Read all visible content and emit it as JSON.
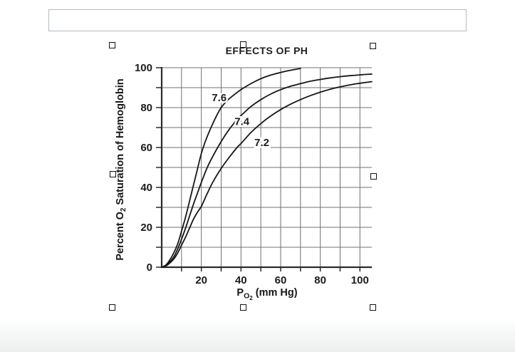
{
  "page": {
    "background": "#ffffff"
  },
  "caption_box": {
    "value": "",
    "placeholder": ""
  },
  "selection": {
    "handles": [
      "top-left",
      "top-center",
      "top-right",
      "middle-left",
      "middle-right",
      "bottom-left",
      "bottom-center",
      "bottom-right"
    ]
  },
  "chart_data": {
    "type": "line",
    "title": "EFFECTS OF PH",
    "xlabel": "PO2 (mm Hg)",
    "ylabel": "Percent O2 Saturation of Hemoglobin",
    "xlabel_parts": {
      "main": "P",
      "sub": "O",
      "subsub": "2",
      "rest": " (mm Hg)"
    },
    "ylabel_parts": {
      "pre": "Percent O",
      "sub": "2",
      "post": " Saturation of Hemoglobin"
    },
    "xlim": [
      0,
      106
    ],
    "ylim": [
      0,
      100
    ],
    "x_major_ticks": [
      20,
      40,
      60,
      80,
      100
    ],
    "y_major_ticks": [
      0,
      20,
      40,
      60,
      80,
      100
    ],
    "x_grid_every": 10,
    "y_grid_every": 10,
    "grid": true,
    "legend": "inline-curve-labels",
    "colors": {
      "curve": "#161616",
      "grid": "#707070",
      "axis": "#2b2b2b",
      "text": "#1c1c1c",
      "caption_border": "#b4bcc2"
    },
    "series": [
      {
        "name": "pH 7.6",
        "label": "7.6",
        "label_at": [
          29,
          85
        ],
        "points": [
          [
            0,
            0
          ],
          [
            2,
            1
          ],
          [
            4,
            3.5
          ],
          [
            6,
            7
          ],
          [
            8,
            11.5
          ],
          [
            10,
            18
          ],
          [
            12,
            25
          ],
          [
            14,
            33
          ],
          [
            16,
            41
          ],
          [
            18,
            49
          ],
          [
            20,
            57
          ],
          [
            22,
            63
          ],
          [
            24,
            68
          ],
          [
            26,
            72.5
          ],
          [
            28,
            76.5
          ],
          [
            30,
            80
          ],
          [
            33,
            83.5
          ],
          [
            36,
            86
          ],
          [
            40,
            89
          ],
          [
            45,
            92
          ],
          [
            50,
            94.5
          ],
          [
            55,
            96.3
          ],
          [
            60,
            97.6
          ],
          [
            65,
            98.7
          ],
          [
            70,
            99.6
          ]
        ]
      },
      {
        "name": "pH 7.4",
        "label": "7.4",
        "label_at": [
          40.5,
          73
        ],
        "points": [
          [
            0,
            0
          ],
          [
            2,
            0.8
          ],
          [
            4,
            2.5
          ],
          [
            6,
            5
          ],
          [
            8,
            9
          ],
          [
            10,
            14
          ],
          [
            12,
            19.5
          ],
          [
            14,
            25.5
          ],
          [
            16,
            31.5
          ],
          [
            18,
            37
          ],
          [
            20,
            42.5
          ],
          [
            23,
            50
          ],
          [
            26,
            56
          ],
          [
            30,
            63
          ],
          [
            34,
            69
          ],
          [
            38,
            74
          ],
          [
            40,
            76
          ],
          [
            45,
            80.5
          ],
          [
            50,
            84
          ],
          [
            55,
            86.8
          ],
          [
            60,
            89
          ],
          [
            65,
            90.7
          ],
          [
            70,
            92
          ],
          [
            75,
            93.2
          ],
          [
            80,
            94.1
          ],
          [
            85,
            94.9
          ],
          [
            90,
            95.5
          ],
          [
            95,
            96
          ],
          [
            100,
            96.4
          ],
          [
            106,
            96.8
          ]
        ]
      },
      {
        "name": "pH 7.2",
        "label": "7.2",
        "label_at": [
          50.5,
          62.5
        ],
        "points": [
          [
            0,
            0
          ],
          [
            2,
            0.6
          ],
          [
            4,
            2
          ],
          [
            6,
            4
          ],
          [
            8,
            7
          ],
          [
            10,
            11
          ],
          [
            12,
            15
          ],
          [
            14,
            19.5
          ],
          [
            16,
            24
          ],
          [
            18,
            27.5
          ],
          [
            20,
            30.5
          ],
          [
            23,
            37
          ],
          [
            26,
            43
          ],
          [
            30,
            49.5
          ],
          [
            34,
            55
          ],
          [
            38,
            60
          ],
          [
            40,
            62
          ],
          [
            45,
            67.5
          ],
          [
            50,
            72
          ],
          [
            55,
            75.8
          ],
          [
            60,
            79
          ],
          [
            65,
            81.7
          ],
          [
            70,
            84
          ],
          [
            75,
            86
          ],
          [
            80,
            87.7
          ],
          [
            85,
            89.2
          ],
          [
            90,
            90.4
          ],
          [
            95,
            91.4
          ],
          [
            100,
            92.2
          ],
          [
            106,
            93
          ]
        ]
      }
    ]
  }
}
